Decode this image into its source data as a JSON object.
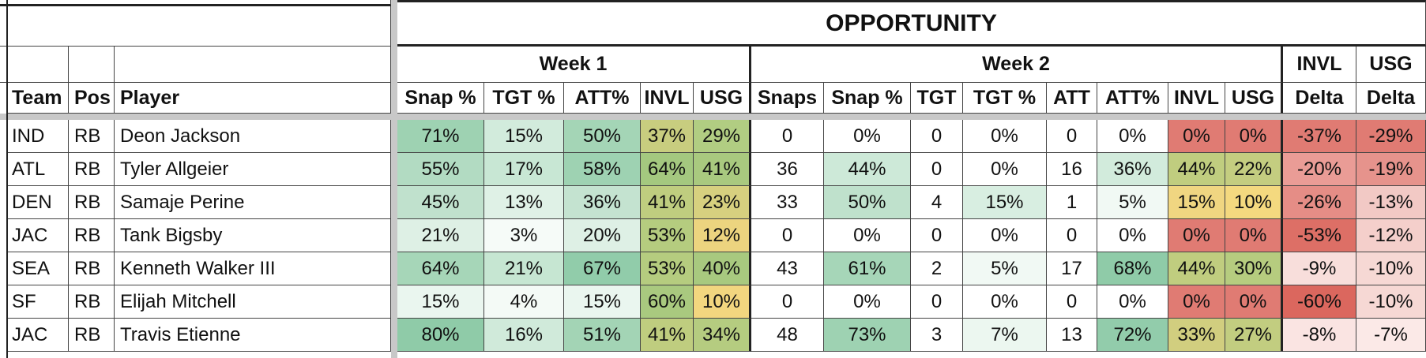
{
  "opportunity_title": "OPPORTUNITY",
  "week1_label": "Week 1",
  "week2_label": "Week 2",
  "delta_top": [
    "INVL",
    "USG"
  ],
  "headers": [
    "Team",
    "Pos",
    "Player",
    "Snap %",
    "TGT %",
    "ATT%",
    "INVL",
    "USG",
    "Snaps",
    "Snap %",
    "TGT",
    "TGT %",
    "ATT",
    "ATT%",
    "INVL",
    "USG",
    "Delta",
    "Delta"
  ],
  "rows": [
    [
      "IND",
      "RB",
      "Deon Jackson",
      "71%",
      "15%",
      "50%",
      "37%",
      "29%",
      "0",
      "0%",
      "0",
      "0%",
      "0",
      "0%",
      "0%",
      "0%",
      "-37%",
      "-29%"
    ],
    [
      "ATL",
      "RB",
      "Tyler Allgeier",
      "55%",
      "17%",
      "58%",
      "64%",
      "41%",
      "36",
      "44%",
      "0",
      "0%",
      "16",
      "36%",
      "44%",
      "22%",
      "-20%",
      "-19%"
    ],
    [
      "DEN",
      "RB",
      "Samaje Perine",
      "45%",
      "13%",
      "36%",
      "41%",
      "23%",
      "33",
      "50%",
      "4",
      "15%",
      "1",
      "5%",
      "15%",
      "10%",
      "-26%",
      "-13%"
    ],
    [
      "JAC",
      "RB",
      "Tank Bigsby",
      "21%",
      "3%",
      "20%",
      "53%",
      "12%",
      "0",
      "0%",
      "0",
      "0%",
      "0",
      "0%",
      "0%",
      "0%",
      "-53%",
      "-12%"
    ],
    [
      "SEA",
      "RB",
      "Kenneth Walker III",
      "64%",
      "21%",
      "67%",
      "53%",
      "40%",
      "43",
      "61%",
      "2",
      "5%",
      "17",
      "68%",
      "44%",
      "30%",
      "-9%",
      "-10%"
    ],
    [
      "SF",
      "RB",
      "Elijah Mitchell",
      "15%",
      "4%",
      "15%",
      "60%",
      "10%",
      "0",
      "0%",
      "0",
      "0%",
      "0",
      "0%",
      "0%",
      "0%",
      "-60%",
      "-10%"
    ],
    [
      "JAC",
      "RB",
      "Travis Etienne",
      "80%",
      "16%",
      "51%",
      "41%",
      "34%",
      "48",
      "73%",
      "3",
      "7%",
      "13",
      "72%",
      "33%",
      "27%",
      "-8%",
      "-7%"
    ]
  ],
  "row_colors": [
    [
      "#ffffff",
      "#ffffff",
      "#ffffff",
      "#9ed2b2",
      "#d2ebdc",
      "#a4d5b6",
      "#c8cd7f",
      "#b1cd82",
      "#ffffff",
      "#ffffff",
      "#ffffff",
      "#ffffff",
      "#ffffff",
      "#ffffff",
      "#e07b73",
      "#e07b73",
      "#e07b73",
      "#e07b73"
    ],
    [
      "#ffffff",
      "#ffffff",
      "#ffffff",
      "#b2dbc2",
      "#c8e7d4",
      "#9ed2b2",
      "#a4c87f",
      "#a9c97f",
      "#ffffff",
      "#cde9d8",
      "#ffffff",
      "#ffffff",
      "#ffffff",
      "#d2ebdc",
      "#c0cd7f",
      "#c4cd80",
      "#ea9c96",
      "#e6938c"
    ],
    [
      "#ffffff",
      "#ffffff",
      "#ffffff",
      "#c0e1cd",
      "#dff1e6",
      "#c4e3d0",
      "#bfcd7f",
      "#d7d07f",
      "#ffffff",
      "#bfe1cc",
      "#ffffff",
      "#d8eee1",
      "#ffffff",
      "#f1f9f4",
      "#f0d681",
      "#f4d97f",
      "#e58d86",
      "#f2c9c5"
    ],
    [
      "#ffffff",
      "#ffffff",
      "#ffffff",
      "#def0e5",
      "#f6fbf8",
      "#def0e5",
      "#b5cc7f",
      "#ecd47f",
      "#ffffff",
      "#ffffff",
      "#ffffff",
      "#ffffff",
      "#ffffff",
      "#ffffff",
      "#e07b73",
      "#e07b73",
      "#dd6f66",
      "#f4cfcb"
    ],
    [
      "#ffffff",
      "#ffffff",
      "#ffffff",
      "#a6d6b8",
      "#c6e6d2",
      "#91ccaa",
      "#b5cc7f",
      "#a8c97f",
      "#ffffff",
      "#a6d6b8",
      "#ffffff",
      "#f1f9f4",
      "#ffffff",
      "#8fcba8",
      "#c0cd7f",
      "#b6cc7f",
      "#f8dedb",
      "#f6d8d4"
    ],
    [
      "#ffffff",
      "#ffffff",
      "#ffffff",
      "#eaf6ef",
      "#f4faf6",
      "#eaf6ef",
      "#a9c97f",
      "#f2d67f",
      "#ffffff",
      "#ffffff",
      "#ffffff",
      "#ffffff",
      "#ffffff",
      "#ffffff",
      "#e07b73",
      "#e07b73",
      "#db675e",
      "#f6d8d4"
    ],
    [
      "#ffffff",
      "#ffffff",
      "#ffffff",
      "#8fcba8",
      "#d0eada",
      "#a3d4b5",
      "#bfcd7f",
      "#b5cc80",
      "#ffffff",
      "#9ed2b2",
      "#ffffff",
      "#ecf7f0",
      "#ffffff",
      "#92ccab",
      "#d1ce7f",
      "#c2cd80",
      "#fae4e2",
      "#fbe9e7"
    ]
  ]
}
